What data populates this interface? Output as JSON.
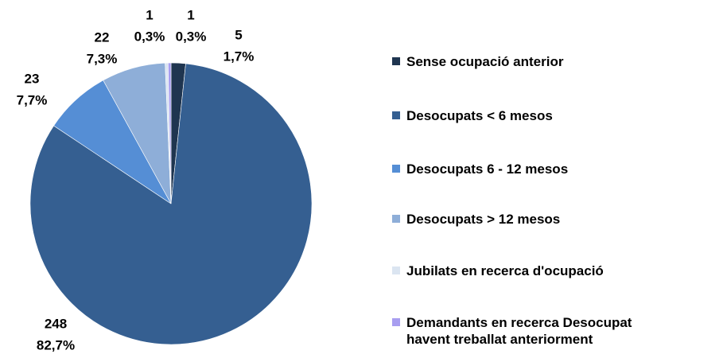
{
  "chart_data": {
    "type": "pie",
    "categories": [
      "Sense ocupació anterior",
      "Desocupats < 6 mesos",
      "Desocupats 6 - 12 mesos",
      "Desocupats > 12 mesos",
      "Jubilats en recerca d'ocupació",
      "Demandants en recerca Desocupat havent treballat anteriorment"
    ],
    "values": [
      5,
      248,
      23,
      22,
      1,
      1
    ],
    "percentages": [
      1.7,
      82.7,
      7.7,
      7.3,
      0.3,
      0.3
    ],
    "percentage_labels": [
      "1,7%",
      "82,7%",
      "7,7%",
      "7,3%",
      "0,3%",
      "0,3%"
    ],
    "colors": [
      "#1f3550",
      "#355f91",
      "#558ed5",
      "#8eaed8",
      "#dbe5f1",
      "#a89ef0"
    ],
    "legend": "right"
  }
}
